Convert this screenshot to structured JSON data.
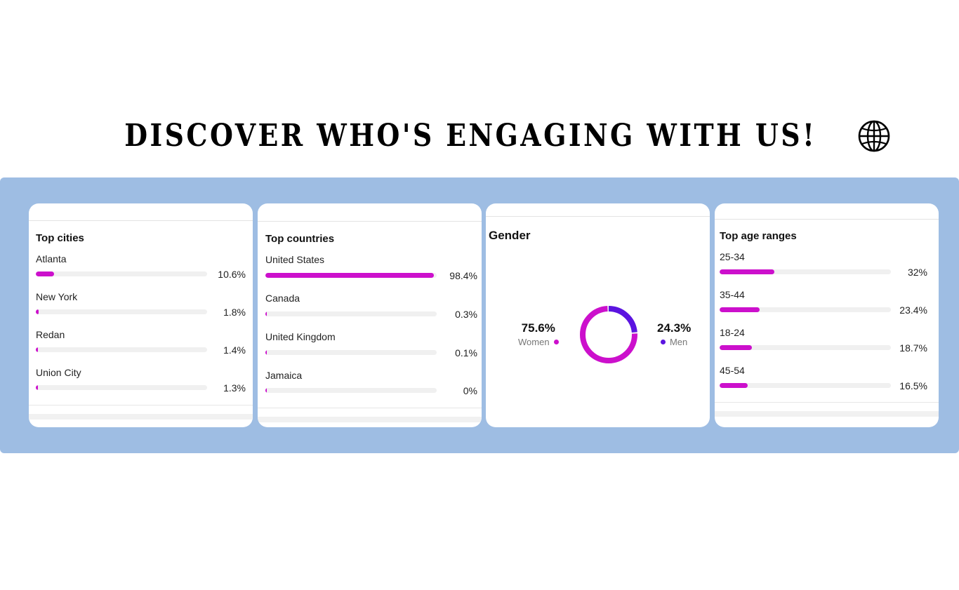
{
  "headline": "DISCOVER WHO'S ENGAGING WITH US!",
  "colors": {
    "band": "#9ebde3",
    "bar": "#cc10cc",
    "men": "#5b14e0",
    "women": "#cc10cc",
    "track": "#f0f0f0"
  },
  "cities": {
    "title": "Top cities",
    "items": [
      {
        "label": "Atlanta",
        "pct": "10.6%",
        "value": 10.6
      },
      {
        "label": "New York",
        "pct": "1.8%",
        "value": 1.8
      },
      {
        "label": "Redan",
        "pct": "1.4%",
        "value": 1.4
      },
      {
        "label": "Union City",
        "pct": "1.3%",
        "value": 1.3
      }
    ]
  },
  "countries": {
    "title": "Top countries",
    "items": [
      {
        "label": "United States",
        "pct": "98.4%",
        "value": 98.4
      },
      {
        "label": "Canada",
        "pct": "0.3%",
        "value": 0.3
      },
      {
        "label": "United Kingdom",
        "pct": "0.1%",
        "value": 0.1
      },
      {
        "label": "Jamaica",
        "pct": "0%",
        "value": 0
      }
    ]
  },
  "gender": {
    "title": "Gender",
    "women": {
      "value_text": "75.6%",
      "label": "Women",
      "value": 75.6
    },
    "men": {
      "value_text": "24.3%",
      "label": "Men",
      "value": 24.3
    }
  },
  "ages": {
    "title": "Top age ranges",
    "items": [
      {
        "label": "25-34",
        "pct": "32%",
        "value": 32
      },
      {
        "label": "35-44",
        "pct": "23.4%",
        "value": 23.4
      },
      {
        "label": "18-24",
        "pct": "18.7%",
        "value": 18.7
      },
      {
        "label": "45-54",
        "pct": "16.5%",
        "value": 16.5
      }
    ]
  }
}
